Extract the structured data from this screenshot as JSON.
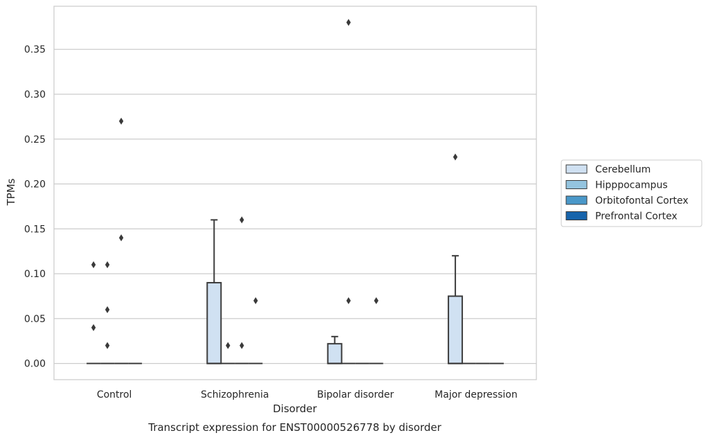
{
  "chart_data": {
    "type": "box",
    "title": "Transcript expression for ENST00000526778 by disorder",
    "xlabel": "Disorder",
    "ylabel": "TPMs",
    "ylim": [
      -0.018,
      0.398
    ],
    "yticks": [
      0.0,
      0.05,
      0.1,
      0.15,
      0.2,
      0.25,
      0.3,
      0.35
    ],
    "ytick_labels": [
      "0.00",
      "0.05",
      "0.10",
      "0.15",
      "0.20",
      "0.25",
      "0.30",
      "0.35"
    ],
    "grid": "horizontal",
    "legend_position": "right",
    "categories": [
      "Control",
      "Schizophrenia",
      "Bipolar disorder",
      "Major depression"
    ],
    "series": [
      {
        "name": "Cerebellum",
        "color": "#d0e1f2",
        "boxes": [
          {
            "q1": 0,
            "median": 0,
            "q3": 0,
            "whisker_low": 0,
            "whisker_high": 0,
            "outliers": [
              0.04,
              0.11
            ]
          },
          {
            "q1": 0,
            "median": 0,
            "q3": 0.09,
            "whisker_low": 0,
            "whisker_high": 0.16,
            "outliers": []
          },
          {
            "q1": 0,
            "median": 0,
            "q3": 0.022,
            "whisker_low": 0,
            "whisker_high": 0.03,
            "outliers": []
          },
          {
            "q1": 0,
            "median": 0,
            "q3": 0.075,
            "whisker_low": 0,
            "whisker_high": 0.12,
            "outliers": [
              0.23
            ]
          }
        ]
      },
      {
        "name": "Hipppocampus",
        "color": "#94c4df",
        "boxes": [
          {
            "q1": 0,
            "median": 0,
            "q3": 0,
            "whisker_low": 0,
            "whisker_high": 0,
            "outliers": [
              0.02,
              0.06,
              0.11
            ]
          },
          {
            "q1": 0,
            "median": 0,
            "q3": 0,
            "whisker_low": 0,
            "whisker_high": 0,
            "outliers": [
              0.02
            ]
          },
          {
            "q1": 0,
            "median": 0,
            "q3": 0,
            "whisker_low": 0,
            "whisker_high": 0,
            "outliers": [
              0.07,
              0.38
            ]
          },
          {
            "q1": 0,
            "median": 0,
            "q3": 0,
            "whisker_low": 0,
            "whisker_high": 0,
            "outliers": []
          }
        ]
      },
      {
        "name": "Orbitofontal Cortex",
        "color": "#4a98c9",
        "boxes": [
          {
            "q1": 0,
            "median": 0,
            "q3": 0,
            "whisker_low": 0,
            "whisker_high": 0,
            "outliers": [
              0.14,
              0.27
            ]
          },
          {
            "q1": 0,
            "median": 0,
            "q3": 0,
            "whisker_low": 0,
            "whisker_high": 0,
            "outliers": [
              0.02,
              0.16
            ]
          },
          {
            "q1": 0,
            "median": 0,
            "q3": 0,
            "whisker_low": 0,
            "whisker_high": 0,
            "outliers": []
          },
          {
            "q1": 0,
            "median": 0,
            "q3": 0,
            "whisker_low": 0,
            "whisker_high": 0,
            "outliers": []
          }
        ]
      },
      {
        "name": "Prefrontal Cortex",
        "color": "#1764ab",
        "boxes": [
          {
            "q1": 0,
            "median": 0,
            "q3": 0,
            "whisker_low": 0,
            "whisker_high": 0,
            "outliers": []
          },
          {
            "q1": 0,
            "median": 0,
            "q3": 0,
            "whisker_low": 0,
            "whisker_high": 0,
            "outliers": [
              0.07
            ]
          },
          {
            "q1": 0,
            "median": 0,
            "q3": 0,
            "whisker_low": 0,
            "whisker_high": 0,
            "outliers": [
              0.07
            ]
          },
          {
            "q1": 0,
            "median": 0,
            "q3": 0,
            "whisker_low": 0,
            "whisker_high": 0,
            "outliers": []
          }
        ]
      }
    ]
  }
}
